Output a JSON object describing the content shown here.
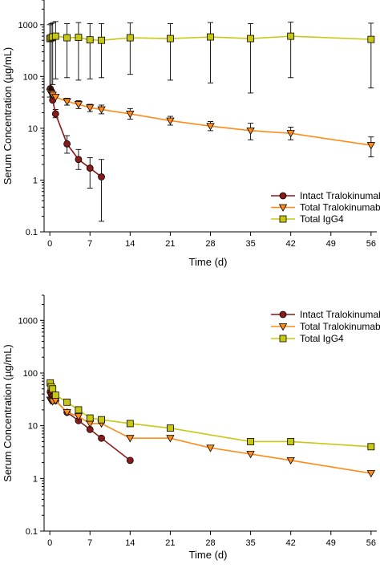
{
  "chart_data": [
    {
      "type": "line",
      "title": "",
      "xlabel": "Time (d)",
      "ylabel": "Serum Concentration (µg/mL)",
      "yscale": "log",
      "xlim": [
        -1,
        57
      ],
      "ylim": [
        0.1,
        3000
      ],
      "xticks": [
        0,
        7,
        14,
        21,
        28,
        35,
        42,
        49,
        56
      ],
      "yticks": [
        0.1,
        1,
        10,
        100,
        1000
      ],
      "ytick_labels": [
        "0.1",
        "1",
        "10",
        "100",
        "1000"
      ],
      "legend": {
        "placement": "lower-right"
      },
      "series": [
        {
          "name": "Intact Tralokinumab",
          "color": "#8B1A1A",
          "marker": "circle",
          "x": [
            0.08,
            0.25,
            0.5,
            1,
            3,
            5,
            7,
            9
          ],
          "y": [
            58,
            52,
            35,
            19,
            5,
            2.5,
            1.7,
            1.15
          ],
          "err_low": [
            null,
            null,
            null,
            16,
            3.3,
            1.6,
            0.7,
            0.16
          ],
          "err_high": [
            null,
            null,
            null,
            23,
            7.2,
            3.9,
            2.7,
            2.5
          ]
        },
        {
          "name": "Total Tralokinumab",
          "color": "#FF8C1A",
          "marker": "triangle-down",
          "x": [
            0.08,
            0.25,
            0.5,
            1,
            3,
            5,
            7,
            9,
            14,
            21,
            28,
            35,
            42,
            56
          ],
          "y": [
            50,
            47,
            44,
            40,
            33,
            29,
            25,
            23,
            19,
            14,
            11,
            9,
            8,
            4.7
          ],
          "err_low": [
            null,
            null,
            null,
            null,
            28,
            24,
            21,
            19,
            15,
            11.5,
            9,
            6,
            6,
            2.8
          ],
          "err_high": [
            null,
            null,
            null,
            null,
            38,
            34,
            29,
            28,
            24,
            17,
            13.5,
            12.5,
            10.5,
            6.8
          ]
        },
        {
          "name": "Total IgG4",
          "color": "#C8C814",
          "marker": "square",
          "x": [
            0,
            0.25,
            0.5,
            1,
            3,
            5,
            7,
            9,
            14,
            21,
            28,
            35,
            42,
            56
          ],
          "y": [
            540,
            560,
            580,
            600,
            560,
            570,
            510,
            500,
            560,
            540,
            580,
            540,
            600,
            520
          ],
          "err_low": [
            40,
            55,
            70,
            90,
            95,
            85,
            90,
            95,
            110,
            85,
            75,
            48,
            95,
            60
          ],
          "err_high": [
            1000,
            1050,
            1100,
            1150,
            1050,
            1100,
            1050,
            1050,
            1080,
            1050,
            1100,
            1050,
            1120,
            1070
          ]
        }
      ]
    },
    {
      "type": "line",
      "title": "",
      "xlabel": "Time (d)",
      "ylabel": "Serum Concentration (µg/mL)",
      "yscale": "log",
      "xlim": [
        -1,
        57
      ],
      "ylim": [
        0.1,
        3000
      ],
      "xticks": [
        0,
        7,
        14,
        21,
        28,
        35,
        42,
        49,
        56
      ],
      "yticks": [
        0.1,
        1,
        10,
        100,
        1000
      ],
      "ytick_labels": [
        "0.1",
        "1",
        "10",
        "100",
        "1000"
      ],
      "legend": {
        "placement": "upper-right"
      },
      "series": [
        {
          "name": "Intact Tralokinumab",
          "color": "#8B1A1A",
          "marker": "circle",
          "x": [
            0.08,
            0.25,
            0.5,
            1,
            3,
            5,
            7,
            9,
            14
          ],
          "y": [
            44,
            40,
            36,
            30,
            18,
            12.5,
            8.5,
            5.8,
            2.2
          ]
        },
        {
          "name": "Total Tralokinumab",
          "color": "#FF8C1A",
          "marker": "triangle-down",
          "x": [
            0.08,
            0.25,
            0.5,
            1,
            3,
            5,
            7,
            9,
            14,
            21,
            28,
            35,
            42,
            56
          ],
          "y": [
            31,
            30,
            29,
            30,
            18,
            15,
            11,
            11,
            5.8,
            5.8,
            3.8,
            2.9,
            2.2,
            1.25
          ]
        },
        {
          "name": "Total IgG4",
          "color": "#C8C814",
          "marker": "square",
          "x": [
            0.08,
            0.25,
            0.5,
            1,
            3,
            5,
            7,
            9,
            14,
            21,
            28,
            35,
            42,
            56
          ],
          "y": [
            65,
            55,
            50,
            38,
            28,
            20,
            14,
            13,
            11,
            9,
            null,
            5,
            5,
            4
          ]
        }
      ]
    }
  ]
}
